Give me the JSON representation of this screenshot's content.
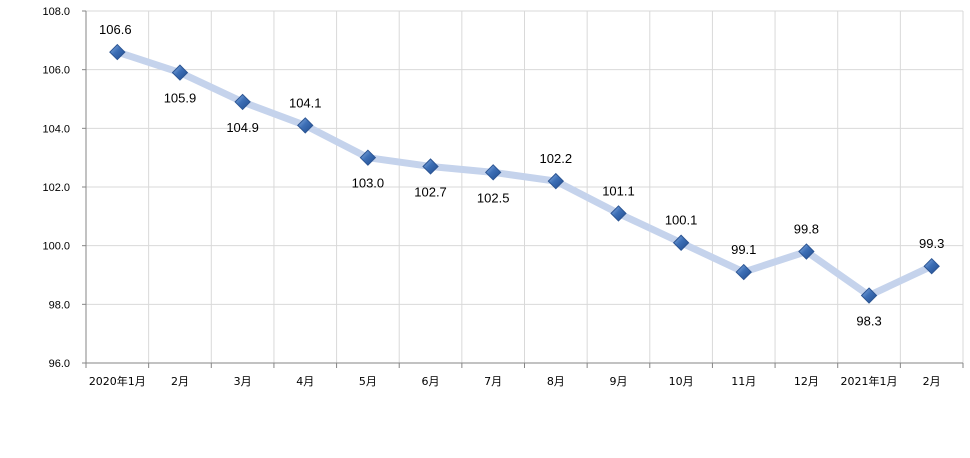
{
  "chart_data": {
    "type": "line",
    "title": "",
    "xlabel": "",
    "ylabel": "",
    "ylim": [
      96.0,
      108.0
    ],
    "y_ticks": [
      "96.0",
      "98.0",
      "100.0",
      "102.0",
      "104.0",
      "106.0",
      "108.0"
    ],
    "grid": true,
    "categories": [
      "2020年1月",
      "2月",
      "3月",
      "4月",
      "5月",
      "6月",
      "7月",
      "8月",
      "9月",
      "10月",
      "11月",
      "12月",
      "2021年1月",
      "2月"
    ],
    "series": [
      {
        "values": [
          106.6,
          105.9,
          104.9,
          104.1,
          103.0,
          102.7,
          102.5,
          102.2,
          101.1,
          100.1,
          99.1,
          99.8,
          98.3,
          99.3
        ],
        "labels": [
          "106.6",
          "105.9",
          "104.9",
          "104.1",
          "103.0",
          "102.7",
          "102.5",
          "102.2",
          "101.1",
          "100.1",
          "99.1",
          "99.8",
          "98.3",
          "99.3"
        ],
        "line_color": "#c5d3ec",
        "marker_color": "#3d6fb6"
      }
    ]
  }
}
